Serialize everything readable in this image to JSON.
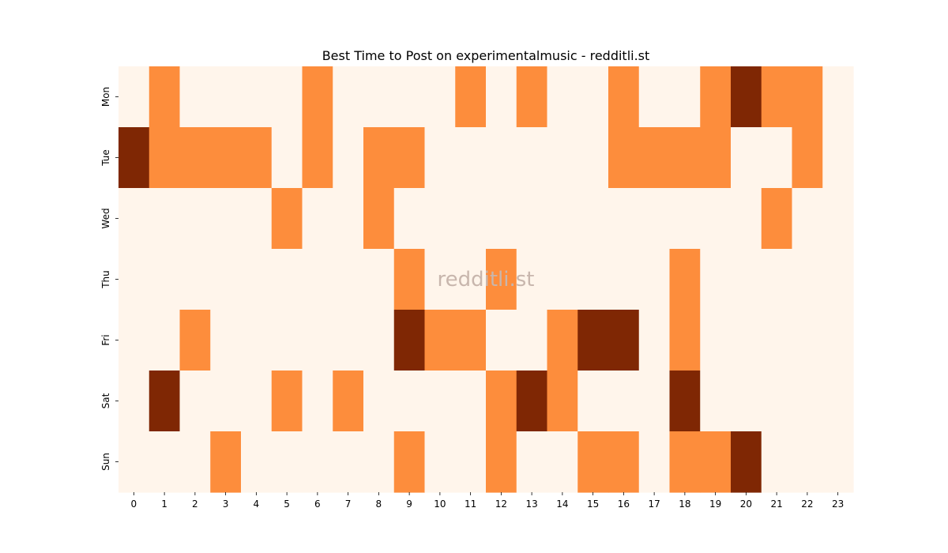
{
  "chart_data": {
    "type": "heatmap",
    "title": "Best Time to Post on experimentalmusic - redditli.st",
    "watermark": "redditli.st",
    "xlabel": "",
    "ylabel": "",
    "x_categories": [
      "0",
      "1",
      "2",
      "3",
      "4",
      "5",
      "6",
      "7",
      "8",
      "9",
      "10",
      "11",
      "12",
      "13",
      "14",
      "15",
      "16",
      "17",
      "18",
      "19",
      "20",
      "21",
      "22",
      "23"
    ],
    "y_categories": [
      "Mon",
      "Tue",
      "Wed",
      "Thu",
      "Fri",
      "Sat",
      "Sun"
    ],
    "values": [
      [
        0,
        1,
        0,
        0,
        0,
        0,
        1,
        0,
        0,
        0,
        0,
        1,
        0,
        1,
        0,
        0,
        1,
        0,
        0,
        1,
        2,
        1,
        1,
        0
      ],
      [
        2,
        1,
        1,
        1,
        1,
        0,
        1,
        0,
        1,
        1,
        0,
        0,
        0,
        0,
        0,
        0,
        1,
        1,
        1,
        1,
        0,
        0,
        1,
        0
      ],
      [
        0,
        0,
        0,
        0,
        0,
        1,
        0,
        0,
        1,
        0,
        0,
        0,
        0,
        0,
        0,
        0,
        0,
        0,
        0,
        0,
        0,
        1,
        0,
        0
      ],
      [
        0,
        0,
        0,
        0,
        0,
        0,
        0,
        0,
        0,
        1,
        0,
        0,
        1,
        0,
        0,
        0,
        0,
        0,
        1,
        0,
        0,
        0,
        0,
        0
      ],
      [
        0,
        0,
        1,
        0,
        0,
        0,
        0,
        0,
        0,
        2,
        1,
        1,
        0,
        0,
        1,
        2,
        2,
        0,
        1,
        0,
        0,
        0,
        0,
        0
      ],
      [
        0,
        2,
        0,
        0,
        0,
        1,
        0,
        1,
        0,
        0,
        0,
        0,
        1,
        2,
        1,
        0,
        0,
        0,
        2,
        0,
        0,
        0,
        0,
        0
      ],
      [
        0,
        0,
        0,
        1,
        0,
        0,
        0,
        0,
        0,
        1,
        0,
        0,
        1,
        0,
        0,
        1,
        1,
        0,
        1,
        1,
        2,
        0,
        0,
        0
      ]
    ],
    "colors": {
      "0": "#fff5eb",
      "1": "#fd8d3c",
      "2": "#7f2704"
    },
    "legend": "none",
    "grid": false
  }
}
